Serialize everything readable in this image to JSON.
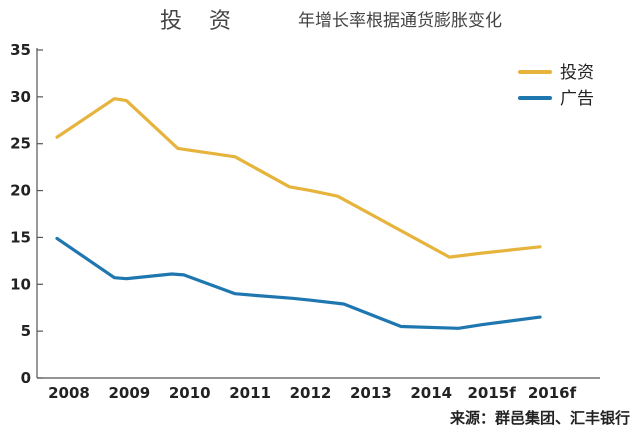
{
  "chart_data": {
    "type": "line",
    "title": "投 资",
    "subtitle": "年增长率根据通货膨胀变化",
    "source": "来源：群邑集团、汇丰银行",
    "categories": [
      "2008",
      "2009",
      "2010",
      "2011",
      "2012",
      "2013",
      "2014",
      "2015f",
      "2016f"
    ],
    "ylim": [
      0,
      35
    ],
    "yticks": [
      "0",
      "5",
      "10",
      "15",
      "20",
      "25",
      "30",
      "35"
    ],
    "grid": false,
    "legend_position": "top-right",
    "series": [
      {
        "name": "投资",
        "color": "#E6B43C",
        "x": [
          2008.0,
          2008.95,
          2009.15,
          2010.0,
          2010.95,
          2011.85,
          2012.2,
          2012.65,
          2014.5,
          2015.0,
          2016.0
        ],
        "values": [
          25.7,
          29.8,
          29.6,
          24.5,
          23.6,
          20.4,
          20.0,
          19.4,
          12.9,
          13.3,
          14.0
        ]
      },
      {
        "name": "广告",
        "color": "#1F77B0",
        "x": [
          2008.0,
          2008.95,
          2009.15,
          2009.9,
          2010.1,
          2010.95,
          2011.3,
          2011.9,
          2012.2,
          2012.75,
          2013.7,
          2014.65,
          2015.05,
          2016.0
        ],
        "values": [
          14.9,
          10.7,
          10.6,
          11.1,
          11.0,
          9.0,
          8.8,
          8.5,
          8.3,
          7.9,
          5.5,
          5.3,
          5.7,
          6.5
        ]
      }
    ]
  }
}
